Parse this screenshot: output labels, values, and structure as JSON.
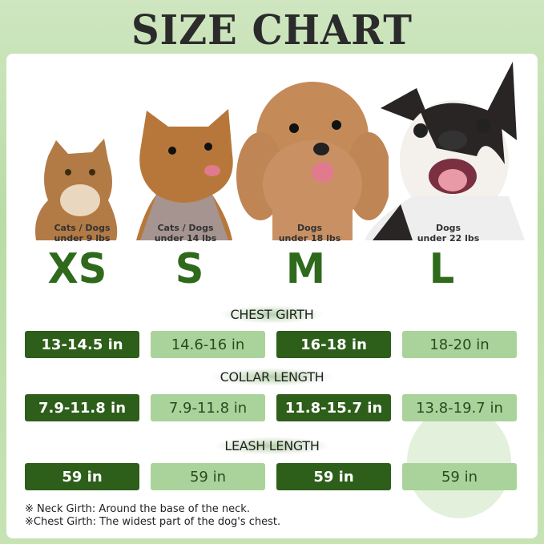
{
  "title": "SIZE CHART",
  "sizes": [
    {
      "label": "XS",
      "caption1": "Cats / Dogs",
      "caption2": "under 9 lbs"
    },
    {
      "label": "S",
      "caption1": "Cats / Dogs",
      "caption2": "under 14 lbs"
    },
    {
      "label": "M",
      "caption1": "Dogs",
      "caption2": "under 18 lbs"
    },
    {
      "label": "L",
      "caption1": "Dogs",
      "caption2": "under 22 lbs"
    }
  ],
  "sections": [
    {
      "title": "CHEST GIRTH",
      "values": [
        "13-14.5 in",
        "14.6-16 in",
        "16-18 in",
        "18-20 in"
      ]
    },
    {
      "title": "COLLAR LENGTH",
      "values": [
        "7.9-11.8 in",
        "7.9-11.8 in",
        "11.8-15.7 in",
        "13.8-19.7 in"
      ]
    },
    {
      "title": "LEASH LENGTH",
      "values": [
        "59 in",
        "59 in",
        "59 in",
        "59 in"
      ]
    }
  ],
  "notes": [
    "※ Neck Girth: Around the base of the neck.",
    "※Chest Girth: The widest part of the dog's chest."
  ],
  "colors": {
    "dark_box": "#2d5e1a",
    "light_box": "#a9d39a",
    "size_letter": "#2f6a1c"
  }
}
